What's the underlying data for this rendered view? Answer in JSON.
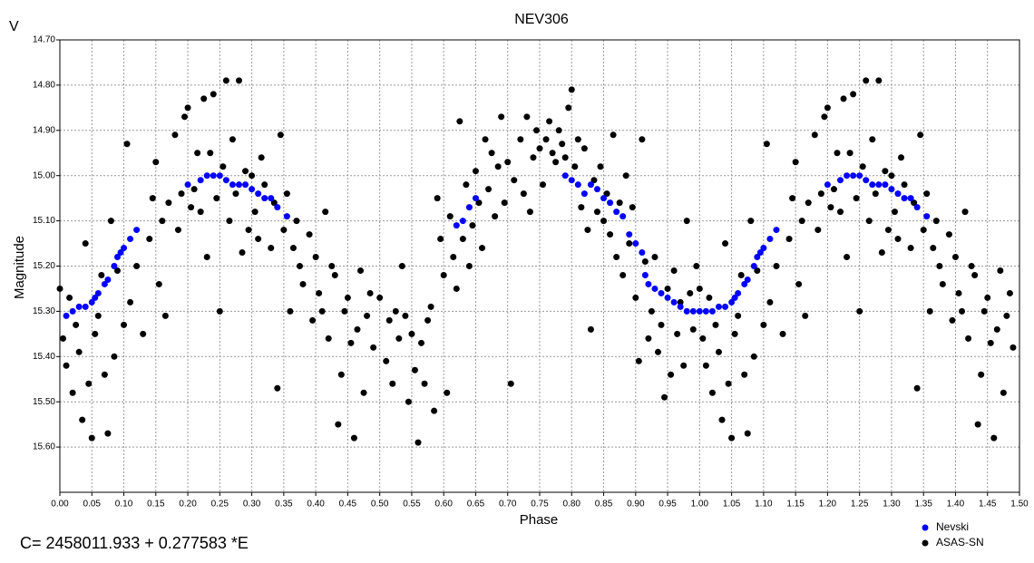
{
  "chart_data": {
    "type": "scatter",
    "corner_label": "V",
    "title": "NEV306",
    "xlabel": "Phase",
    "ylabel": "Magnitude",
    "footnote": "C= 2458011.933 + 0.277583 *E",
    "legend": "bottom-right",
    "grid": true,
    "y_inverted": true,
    "xlim": [
      0,
      1.5
    ],
    "ylim": [
      14.7,
      15.7
    ],
    "xticks": [
      {
        "value": 0,
        "label": "0.00"
      },
      {
        "value": 0.05,
        "label": "0.05"
      },
      {
        "value": 0.1,
        "label": "0.10"
      },
      {
        "value": 0.15,
        "label": "0.15"
      },
      {
        "value": 0.2,
        "label": "0.20"
      },
      {
        "value": 0.25,
        "label": "0.25"
      },
      {
        "value": 0.3,
        "label": "0.30"
      },
      {
        "value": 0.35,
        "label": "0.35"
      },
      {
        "value": 0.4,
        "label": "0.40"
      },
      {
        "value": 0.45,
        "label": "0.45"
      },
      {
        "value": 0.5,
        "label": "0.50"
      },
      {
        "value": 0.55,
        "label": "0.55"
      },
      {
        "value": 0.6,
        "label": "0.60"
      },
      {
        "value": 0.65,
        "label": "0.65"
      },
      {
        "value": 0.7,
        "label": "0.70"
      },
      {
        "value": 0.75,
        "label": "0.75"
      },
      {
        "value": 0.8,
        "label": "0.80"
      },
      {
        "value": 0.85,
        "label": "0.85"
      },
      {
        "value": 0.9,
        "label": "0.90"
      },
      {
        "value": 0.95,
        "label": "0.95"
      },
      {
        "value": 1,
        "label": "1.00"
      },
      {
        "value": 1.05,
        "label": "1.05"
      },
      {
        "value": 1.1,
        "label": "1.10"
      },
      {
        "value": 1.15,
        "label": "1.15"
      },
      {
        "value": 1.2,
        "label": "1.20"
      },
      {
        "value": 1.25,
        "label": "1.25"
      },
      {
        "value": 1.3,
        "label": "1.30"
      },
      {
        "value": 1.35,
        "label": "1.35"
      },
      {
        "value": 1.4,
        "label": "1.40"
      },
      {
        "value": 1.45,
        "label": "1.45"
      },
      {
        "value": 1.5,
        "label": "1.50"
      }
    ],
    "yticks": [
      {
        "value": 14.7,
        "label": "14.70"
      },
      {
        "value": 14.8,
        "label": "14.80"
      },
      {
        "value": 14.9,
        "label": "14.90"
      },
      {
        "value": 15,
        "label": "15.00"
      },
      {
        "value": 15.1,
        "label": "15.10"
      },
      {
        "value": 15.2,
        "label": "15.20"
      },
      {
        "value": 15.3,
        "label": "15.30"
      },
      {
        "value": 15.4,
        "label": "15.40"
      },
      {
        "value": 15.5,
        "label": "15.50"
      },
      {
        "value": 15.6,
        "label": "15.60"
      }
    ],
    "series": [
      {
        "name": "Nevski",
        "color": "#0000ff",
        "x": [
          0.01,
          0.02,
          0.03,
          0.04,
          0.05,
          0.055,
          0.06,
          0.07,
          0.075,
          0.085,
          0.09,
          0.095,
          0.1,
          0.11,
          0.12,
          0.2,
          0.22,
          0.23,
          0.24,
          0.25,
          0.26,
          0.27,
          0.28,
          0.29,
          0.3,
          0.31,
          0.32,
          0.33,
          0.34,
          0.355,
          0.62,
          0.63,
          0.64,
          0.65,
          0.79,
          0.8,
          0.81,
          0.82,
          0.83,
          0.84,
          0.85,
          0.86,
          0.87,
          0.88,
          0.89,
          0.9,
          0.91,
          0.915,
          0.92,
          0.93,
          0.94,
          0.95,
          0.96,
          0.97,
          0.98,
          0.99,
          1.0,
          1.01,
          1.02,
          1.03,
          1.04,
          1.05,
          1.055,
          1.06,
          1.07,
          1.075,
          1.085,
          1.09,
          1.095,
          1.1,
          1.11,
          1.12,
          1.2,
          1.22,
          1.23,
          1.24,
          1.25,
          1.26,
          1.27,
          1.28,
          1.29,
          1.3,
          1.31,
          1.32,
          1.33,
          1.34,
          1.355
        ],
        "values": [
          15.31,
          15.3,
          15.29,
          15.29,
          15.28,
          15.27,
          15.26,
          15.24,
          15.23,
          15.2,
          15.18,
          15.17,
          15.16,
          15.14,
          15.12,
          15.02,
          15.01,
          15.0,
          15.0,
          15.0,
          15.01,
          15.02,
          15.02,
          15.02,
          15.03,
          15.04,
          15.05,
          15.05,
          15.07,
          15.09,
          15.11,
          15.1,
          15.07,
          15.05,
          15.0,
          15.01,
          15.02,
          15.04,
          15.02,
          15.03,
          15.05,
          15.06,
          15.08,
          15.09,
          15.13,
          15.15,
          15.17,
          15.22,
          15.24,
          15.25,
          15.26,
          15.27,
          15.28,
          15.29,
          15.3,
          15.3,
          15.3,
          15.3,
          15.3,
          15.29,
          15.29,
          15.28,
          15.27,
          15.26,
          15.24,
          15.23,
          15.2,
          15.18,
          15.17,
          15.16,
          15.14,
          15.12,
          15.02,
          15.01,
          15.0,
          15.0,
          15.0,
          15.01,
          15.02,
          15.02,
          15.02,
          15.03,
          15.04,
          15.05,
          15.05,
          15.07,
          15.09
        ]
      },
      {
        "name": "ASAS-SN",
        "color": "#000000",
        "x": [
          0.0,
          0.005,
          0.01,
          0.015,
          0.02,
          0.025,
          0.03,
          0.035,
          0.04,
          0.045,
          0.05,
          0.055,
          0.06,
          0.065,
          0.07,
          0.075,
          0.08,
          0.085,
          0.09,
          0.1,
          0.105,
          0.11,
          0.12,
          0.13,
          0.14,
          0.145,
          0.15,
          0.155,
          0.16,
          0.165,
          0.17,
          0.18,
          0.185,
          0.19,
          0.195,
          0.2,
          0.205,
          0.21,
          0.215,
          0.22,
          0.225,
          0.23,
          0.235,
          0.24,
          0.245,
          0.25,
          0.255,
          0.26,
          0.265,
          0.27,
          0.275,
          0.28,
          0.285,
          0.29,
          0.295,
          0.3,
          0.305,
          0.31,
          0.315,
          0.32,
          0.33,
          0.335,
          0.34,
          0.345,
          0.35,
          0.355,
          0.36,
          0.365,
          0.37,
          0.375,
          0.38,
          0.39,
          0.395,
          0.4,
          0.405,
          0.41,
          0.415,
          0.42,
          0.425,
          0.43,
          0.435,
          0.44,
          0.445,
          0.45,
          0.455,
          0.46,
          0.465,
          0.47,
          0.475,
          0.48,
          0.485,
          0.49,
          0.5,
          0.51,
          0.515,
          0.52,
          0.525,
          0.53,
          0.535,
          0.54,
          0.545,
          0.55,
          0.555,
          0.56,
          0.565,
          0.57,
          0.575,
          0.58,
          0.585,
          0.59,
          0.595,
          0.6,
          0.605,
          0.61,
          0.615,
          0.62,
          0.625,
          0.63,
          0.635,
          0.64,
          0.645,
          0.65,
          0.655,
          0.66,
          0.665,
          0.67,
          0.675,
          0.68,
          0.685,
          0.69,
          0.695,
          0.7,
          0.705,
          0.71,
          0.72,
          0.725,
          0.73,
          0.735,
          0.74,
          0.745,
          0.75,
          0.755,
          0.76,
          0.765,
          0.77,
          0.775,
          0.78,
          0.785,
          0.79,
          0.795,
          0.8,
          0.805,
          0.81,
          0.815,
          0.82,
          0.825,
          0.83,
          0.835,
          0.84,
          0.845,
          0.85,
          0.855,
          0.86,
          0.865,
          0.87,
          0.875,
          0.88,
          0.885,
          0.89,
          0.895,
          0.9,
          0.905,
          0.91,
          0.915,
          0.92,
          0.925,
          0.93,
          0.935,
          0.94,
          0.945,
          0.95,
          0.955,
          0.96,
          0.965,
          0.97,
          0.975,
          0.98,
          0.985,
          0.99,
          0.995,
          1.0,
          1.005,
          1.01,
          1.015,
          1.02,
          1.025,
          1.03,
          1.035,
          1.04,
          1.045,
          1.05,
          1.055,
          1.06,
          1.065,
          1.07,
          1.075,
          1.08,
          1.085,
          1.09,
          1.1,
          1.105,
          1.11,
          1.12,
          1.13,
          1.14,
          1.145,
          1.15,
          1.155,
          1.16,
          1.165,
          1.17,
          1.18,
          1.185,
          1.19,
          1.195,
          1.2,
          1.205,
          1.21,
          1.215,
          1.22,
          1.225,
          1.23,
          1.235,
          1.24,
          1.245,
          1.25,
          1.255,
          1.26,
          1.265,
          1.27,
          1.275,
          1.28,
          1.285,
          1.29,
          1.295,
          1.3,
          1.305,
          1.31,
          1.315,
          1.32,
          1.33,
          1.335,
          1.34,
          1.345,
          1.35,
          1.355,
          1.36,
          1.365,
          1.37,
          1.375,
          1.38,
          1.39,
          1.395,
          1.4,
          1.405,
          1.41,
          1.415,
          1.42,
          1.425,
          1.43,
          1.435,
          1.44,
          1.445,
          1.45,
          1.455,
          1.46,
          1.465,
          1.47,
          1.475,
          1.48,
          1.485,
          1.49
        ],
        "values": [
          15.25,
          15.36,
          15.42,
          15.27,
          15.48,
          15.33,
          15.39,
          15.54,
          15.15,
          15.46,
          15.58,
          15.35,
          15.31,
          15.22,
          15.44,
          15.57,
          15.1,
          15.4,
          15.21,
          15.33,
          14.93,
          15.28,
          15.2,
          15.35,
          15.14,
          15.05,
          14.97,
          15.24,
          15.1,
          15.31,
          15.06,
          14.91,
          15.12,
          15.04,
          14.87,
          14.85,
          15.07,
          15.03,
          14.95,
          15.08,
          14.83,
          15.18,
          14.95,
          14.82,
          15.05,
          15.3,
          14.98,
          14.79,
          15.1,
          14.92,
          15.04,
          14.79,
          15.17,
          14.99,
          15.12,
          15.0,
          15.08,
          15.14,
          14.96,
          15.02,
          15.16,
          15.06,
          15.47,
          14.91,
          15.12,
          15.04,
          15.3,
          15.16,
          15.1,
          15.2,
          15.24,
          15.13,
          15.32,
          15.18,
          15.26,
          15.3,
          15.08,
          15.36,
          15.2,
          15.22,
          15.55,
          15.44,
          15.3,
          15.27,
          15.37,
          15.58,
          15.34,
          15.21,
          15.48,
          15.31,
          15.26,
          15.38,
          15.27,
          15.41,
          15.32,
          15.46,
          15.3,
          15.36,
          15.2,
          15.31,
          15.5,
          15.35,
          15.43,
          15.59,
          15.37,
          15.46,
          15.32,
          15.29,
          15.52,
          15.05,
          15.14,
          15.22,
          15.48,
          15.09,
          15.18,
          15.25,
          14.88,
          15.14,
          15.02,
          15.2,
          15.11,
          14.99,
          15.06,
          15.16,
          14.92,
          15.03,
          14.95,
          15.09,
          14.98,
          14.87,
          15.06,
          14.97,
          15.46,
          15.01,
          14.92,
          15.04,
          14.87,
          15.08,
          14.96,
          14.9,
          14.94,
          15.02,
          14.92,
          14.88,
          14.95,
          14.97,
          14.9,
          14.93,
          14.96,
          14.85,
          14.81,
          14.98,
          14.92,
          15.07,
          14.94,
          15.12,
          15.34,
          15.01,
          15.08,
          14.98,
          15.1,
          15.04,
          15.13,
          14.91,
          15.18,
          15.06,
          15.22,
          15.0,
          15.15,
          15.07,
          15.27,
          15.41,
          14.92,
          15.19,
          15.36,
          15.3,
          15.18,
          15.39,
          15.33,
          15.49,
          15.25,
          15.44,
          15.21,
          15.35,
          15.28,
          15.42,
          15.1,
          15.26,
          15.34,
          15.2,
          15.25,
          15.36,
          15.42,
          15.27,
          15.48,
          15.33,
          15.39,
          15.54,
          15.15,
          15.46,
          15.58,
          15.35,
          15.31,
          15.22,
          15.44,
          15.57,
          15.1,
          15.4,
          15.21,
          15.33,
          14.93,
          15.28,
          15.2,
          15.35,
          15.14,
          15.05,
          14.97,
          15.24,
          15.1,
          15.31,
          15.06,
          14.91,
          15.12,
          15.04,
          14.87,
          14.85,
          15.07,
          15.03,
          14.95,
          15.08,
          14.83,
          15.18,
          14.95,
          14.82,
          15.05,
          15.3,
          14.98,
          14.79,
          15.1,
          14.92,
          15.04,
          14.79,
          15.17,
          14.99,
          15.12,
          15.0,
          15.08,
          15.14,
          14.96,
          15.02,
          15.16,
          15.06,
          15.47,
          14.91,
          15.12,
          15.04,
          15.3,
          15.16,
          15.1,
          15.2,
          15.24,
          15.13,
          15.32,
          15.18,
          15.26,
          15.3,
          15.08,
          15.36,
          15.2,
          15.22,
          15.55,
          15.44,
          15.3,
          15.27,
          15.37,
          15.58,
          15.34,
          15.21,
          15.48,
          15.31,
          15.26,
          15.38
        ]
      }
    ]
  }
}
